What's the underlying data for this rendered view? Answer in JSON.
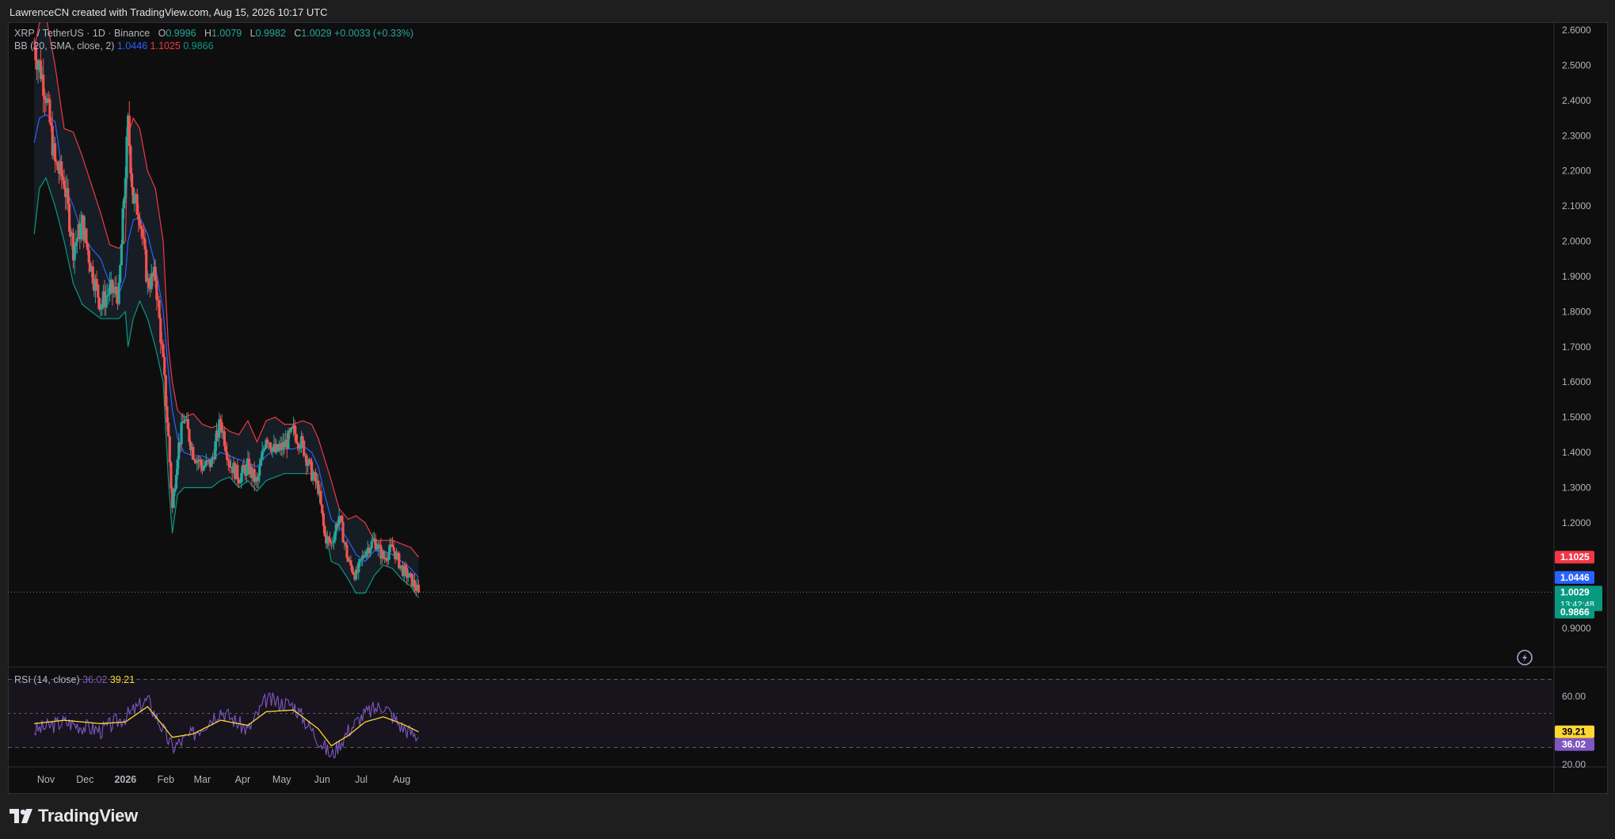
{
  "header": {
    "credit": "LawrenceCN created with TradingView.com, Aug 15, 2026 10:17 UTC"
  },
  "legend": {
    "symbol": "XRP / TetherUS · 1D · Binance",
    "o_label": "O",
    "o_value": "0.9996",
    "h_label": "H",
    "h_value": "1.0079",
    "l_label": "L",
    "l_value": "0.9982",
    "c_label": "C",
    "c_value": "1.0029",
    "change": "+0.0033 (+0.33%)",
    "bb_label": "BB (20, SMA, close, 2)",
    "bb_basis": "1.0446",
    "bb_upper": "1.1025",
    "bb_lower": "0.9866",
    "rsi_label": "RSI (14, close)",
    "rsi_value": "36.02",
    "rsi_ma": "39.21"
  },
  "price_axis": {
    "ticks": [
      "2.6000",
      "2.5000",
      "2.4000",
      "2.3000",
      "2.2000",
      "2.1000",
      "2.0000",
      "1.9000",
      "1.8000",
      "1.7000",
      "1.6000",
      "1.5000",
      "1.4000",
      "1.3000",
      "1.2000",
      "0.9000"
    ],
    "labels": {
      "upper": "1.1025",
      "basis": "1.0446",
      "price": "1.0029",
      "countdown": "13:42:48",
      "lower": "0.9866"
    }
  },
  "rsi_axis": {
    "ticks": [
      "60.00",
      "20.00"
    ],
    "labels": {
      "ma": "39.21",
      "rsi": "36.02"
    }
  },
  "time_axis": [
    "Nov",
    "Dec",
    "2026",
    "Feb",
    "Mar",
    "Apr",
    "May",
    "Jun",
    "Jul",
    "Aug"
  ],
  "colors": {
    "up": "#26a69a",
    "down": "#ef5350",
    "bb_basis": "#2962ff",
    "bb_upper": "#f23645",
    "bb_lower": "#089981",
    "rsi": "#7e57c2",
    "rsi_ma": "#fdd835",
    "background": "#0e0e0e"
  },
  "brand": {
    "name": "TradingView"
  },
  "chart_data": [
    {
      "type": "candlestick",
      "title": "XRP / TetherUS · 1D · Binance",
      "ylim": [
        0.86,
        2.63
      ],
      "x": [
        "2025-10-23",
        "2025-10-27",
        "2025-11-01",
        "2025-11-08",
        "2025-11-15",
        "2025-11-22",
        "2025-11-29",
        "2025-12-06",
        "2025-12-13",
        "2025-12-20",
        "2025-12-27",
        "2026-01-01",
        "2026-01-03",
        "2026-01-07",
        "2026-01-12",
        "2026-01-18",
        "2026-01-24",
        "2026-01-30",
        "2026-02-03",
        "2026-02-06",
        "2026-02-10",
        "2026-02-15",
        "2026-02-22",
        "2026-03-01",
        "2026-03-08",
        "2026-03-15",
        "2026-03-22",
        "2026-03-29",
        "2026-04-05",
        "2026-04-12",
        "2026-04-19",
        "2026-04-26",
        "2026-05-03",
        "2026-05-10",
        "2026-05-17",
        "2026-05-24",
        "2026-05-29",
        "2026-06-03",
        "2026-06-08",
        "2026-06-14",
        "2026-06-21",
        "2026-06-27",
        "2026-07-04",
        "2026-07-11",
        "2026-07-18",
        "2026-07-25",
        "2026-08-01",
        "2026-08-08",
        "2026-08-14"
      ],
      "close": [
        2.55,
        2.5,
        2.42,
        2.22,
        2.17,
        1.98,
        2.05,
        1.92,
        1.82,
        1.86,
        1.85,
        2.2,
        2.33,
        2.12,
        2.08,
        1.88,
        1.9,
        1.65,
        1.44,
        1.24,
        1.4,
        1.5,
        1.4,
        1.36,
        1.37,
        1.49,
        1.37,
        1.33,
        1.36,
        1.31,
        1.45,
        1.4,
        1.42,
        1.46,
        1.42,
        1.34,
        1.3,
        1.16,
        1.14,
        1.22,
        1.09,
        1.05,
        1.12,
        1.15,
        1.1,
        1.13,
        1.07,
        1.04,
        1.0029
      ],
      "series": [
        {
          "name": "BB basis",
          "values": [
            2.28,
            2.35,
            2.36,
            2.34,
            2.16,
            2.1,
            2.02,
            1.98,
            1.95,
            1.88,
            1.85,
            1.9,
            2.0,
            2.06,
            2.07,
            2.02,
            1.93,
            1.8,
            1.63,
            1.52,
            1.44,
            1.4,
            1.39,
            1.39,
            1.38,
            1.4,
            1.39,
            1.38,
            1.37,
            1.36,
            1.39,
            1.41,
            1.41,
            1.41,
            1.42,
            1.4,
            1.36,
            1.28,
            1.21,
            1.19,
            1.15,
            1.11,
            1.09,
            1.12,
            1.12,
            1.11,
            1.09,
            1.07,
            1.0446
          ]
        },
        {
          "name": "BB upper",
          "values": [
            2.55,
            2.62,
            2.64,
            2.5,
            2.32,
            2.31,
            2.24,
            2.16,
            2.08,
            1.99,
            1.98,
            2.0,
            2.3,
            2.35,
            2.32,
            2.2,
            2.15,
            2.0,
            1.7,
            1.6,
            1.52,
            1.5,
            1.51,
            1.48,
            1.47,
            1.48,
            1.46,
            1.45,
            1.49,
            1.43,
            1.49,
            1.5,
            1.48,
            1.48,
            1.49,
            1.48,
            1.44,
            1.38,
            1.32,
            1.24,
            1.21,
            1.22,
            1.2,
            1.15,
            1.15,
            1.15,
            1.14,
            1.13,
            1.1025
          ]
        },
        {
          "name": "BB lower",
          "values": [
            2.02,
            2.15,
            2.18,
            2.1,
            2.0,
            1.88,
            1.82,
            1.8,
            1.78,
            1.78,
            1.78,
            1.8,
            1.7,
            1.78,
            1.83,
            1.78,
            1.7,
            1.6,
            1.32,
            1.17,
            1.28,
            1.3,
            1.3,
            1.3,
            1.3,
            1.32,
            1.33,
            1.3,
            1.32,
            1.29,
            1.32,
            1.33,
            1.34,
            1.34,
            1.34,
            1.34,
            1.3,
            1.19,
            1.09,
            1.08,
            1.04,
            1.0,
            1.0,
            1.05,
            1.08,
            1.07,
            1.04,
            1.02,
            0.9866
          ]
        }
      ]
    },
    {
      "type": "line",
      "title": "RSI (14, close)",
      "ylim": [
        10,
        80
      ],
      "x": [
        "2025-10-23",
        "2025-11-15",
        "2025-12-13",
        "2026-01-01",
        "2026-01-18",
        "2026-02-06",
        "2026-02-22",
        "2026-03-15",
        "2026-04-05",
        "2026-04-19",
        "2026-05-10",
        "2026-05-29",
        "2026-06-08",
        "2026-06-21",
        "2026-07-04",
        "2026-07-18",
        "2026-08-01",
        "2026-08-14"
      ],
      "series": [
        {
          "name": "RSI",
          "values": [
            40,
            45,
            40,
            48,
            58,
            30,
            38,
            52,
            40,
            58,
            55,
            35,
            25,
            40,
            50,
            55,
            42,
            36.02
          ]
        },
        {
          "name": "RSI MA",
          "values": [
            44,
            46,
            44,
            45,
            54,
            36,
            38,
            46,
            43,
            51,
            52,
            41,
            31,
            37,
            45,
            48,
            44,
            39.21
          ]
        }
      ]
    }
  ]
}
